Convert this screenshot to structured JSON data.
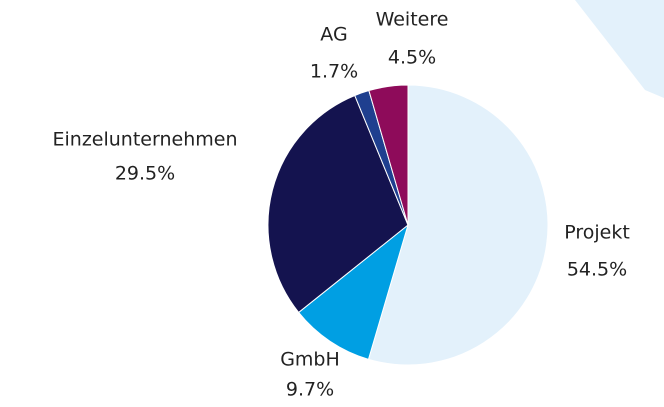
{
  "chart_data": {
    "type": "pie",
    "categories": [
      "Projekt",
      "GmbH",
      "Einzelunternehmen",
      "AG",
      "Weitere"
    ],
    "values": [
      54.5,
      9.7,
      29.5,
      1.7,
      4.5
    ],
    "value_labels": [
      "54.5%",
      "9.7%",
      "29.5%",
      "1.7%",
      "4.5%"
    ],
    "colors": [
      "#e3f1fb",
      "#009fe3",
      "#14134f",
      "#1f3f8f",
      "#8e0b5a"
    ]
  }
}
